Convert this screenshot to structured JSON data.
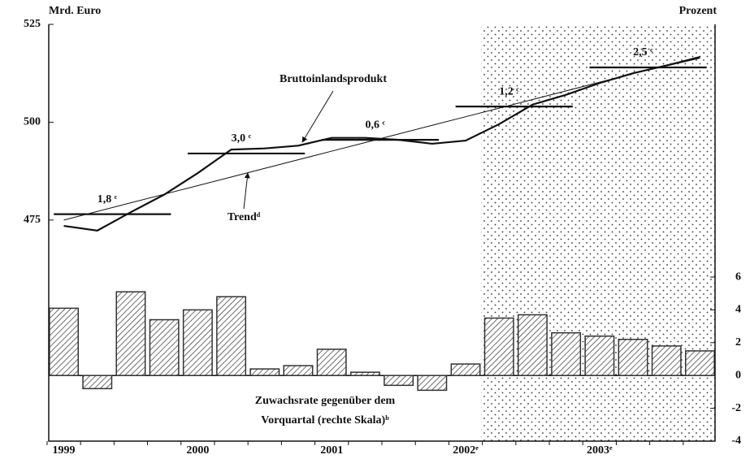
{
  "chart_data": {
    "type": "combo",
    "y_label": "Mrd. Euro",
    "y2_label": "Prozent",
    "categories": [
      "1999",
      null,
      null,
      null,
      "2000",
      null,
      null,
      null,
      "2001",
      null,
      null,
      null,
      "2002ᵉ",
      null,
      null,
      null,
      "2003ᵉ",
      null,
      null,
      null
    ],
    "series": [
      {
        "name": "Zuwachsrate gegenüber dem Vorquartal (rechte Skala)ᵇ",
        "type": "bar",
        "axis": "y2",
        "color": "#333333",
        "values": [
          4.1,
          -0.8,
          5.1,
          3.4,
          4.0,
          4.8,
          0.4,
          0.6,
          1.6,
          0.2,
          -0.6,
          -0.9,
          0.7,
          3.5,
          3.7,
          2.6,
          2.4,
          2.2,
          1.8,
          1.5
        ]
      },
      {
        "name": "Bruttoinlandsprodukt",
        "type": "line",
        "color": "#111111",
        "values": [
          473.5,
          472.3,
          477,
          481.5,
          487,
          493,
          493.3,
          494,
          496,
          496,
          495.5,
          494.5,
          495.3,
          499.5,
          504.5,
          507,
          510,
          512.5,
          514.5,
          516.5
        ]
      },
      {
        "name": "Trendᵈ",
        "type": "line",
        "color": "#111111",
        "values": [
          475,
          477.2,
          479.4,
          481.6,
          483.8,
          486,
          488.2,
          490.4,
          492.6,
          494.8,
          497,
          499.2,
          501.4,
          503.6,
          505.8,
          508,
          510.2,
          512.4,
          514.6,
          516.8
        ]
      }
    ],
    "annual_averages": {
      "values": [
        476.5,
        492,
        495.5,
        504,
        514
      ],
      "labels": [
        "1,8 ᶜ",
        "3,0 ᶜ",
        "0,6 ᶜ",
        "1,2 ᶜ",
        "2,5 ᶜ"
      ]
    },
    "bar_note": [
      "Zuwachsrate gegenüber dem",
      "Vorquartal (rechte Skala)ᵇ"
    ],
    "ylim": [
      418.5,
      525
    ],
    "yticks": [
      475,
      500,
      525
    ],
    "y2lim": [
      -4,
      21.4
    ],
    "y2ticks": [
      -4,
      -2,
      0,
      2,
      4,
      6
    ]
  }
}
